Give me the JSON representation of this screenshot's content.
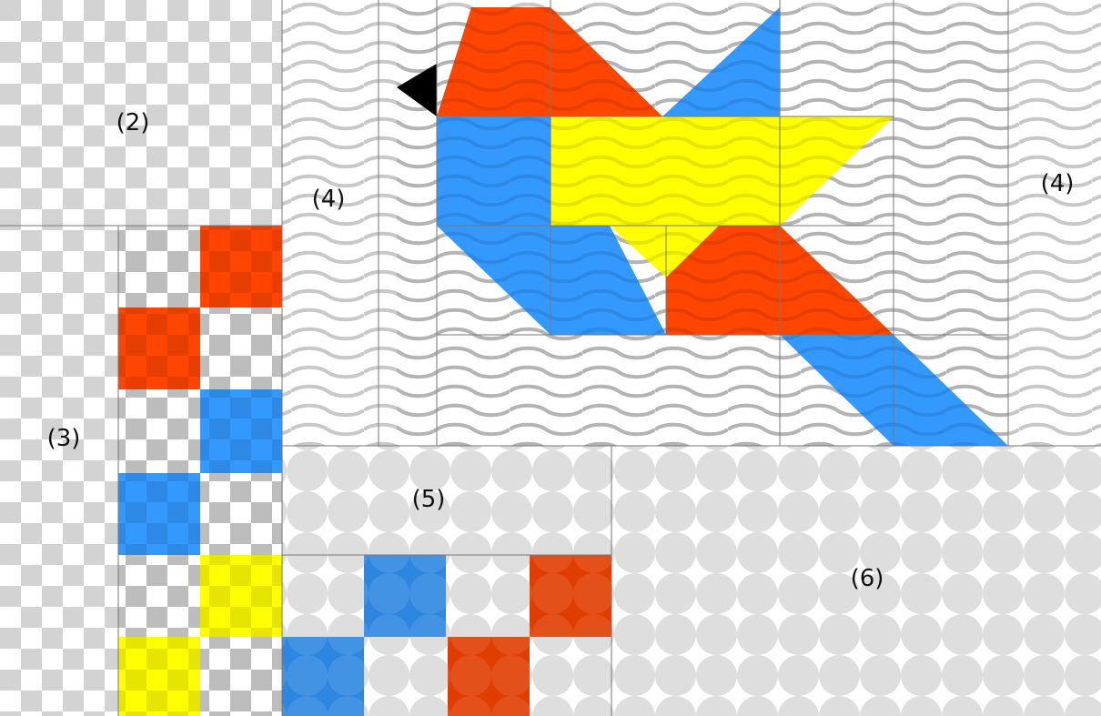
{
  "labels": {
    "region_2": "(2)",
    "region_3": "(3)",
    "region_4_left": "(4)",
    "region_4_right": "(4)",
    "region_5": "(5)",
    "region_6": "(6)"
  },
  "colors": {
    "red": "#ff4500",
    "blue": "#3399ff",
    "yellow": "#ffff00",
    "beak": "#000000",
    "checker_gray": "#d3d3d3",
    "circle_bg": "#e0e0e0",
    "wave_stroke": "#c8c8c8",
    "grid_line": "#777777"
  },
  "fabrics": {
    "region_2": "checkerboard",
    "region_3": "checkerboard",
    "region_4": "waves",
    "region_5": "circles",
    "region_6": "circles"
  },
  "motifs": {
    "region_3": "zigzag squares",
    "region_4": "cardinal bird",
    "region_5": "zigzag squares"
  }
}
